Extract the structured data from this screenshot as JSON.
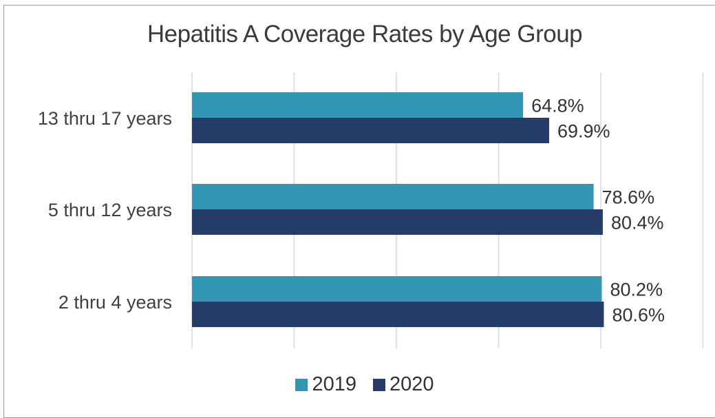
{
  "chart_data": {
    "type": "bar",
    "orientation": "horizontal",
    "title": "Hepatitis A Coverage Rates by Age Group",
    "categories": [
      "13 thru 17 years",
      "5 thru 12 years",
      "2 thru 4 years"
    ],
    "series": [
      {
        "name": "2019",
        "values": [
          64.8,
          78.6,
          80.2
        ],
        "labels": [
          "64.8%",
          "78.6%",
          "80.2%"
        ],
        "color": "#3296b4"
      },
      {
        "name": "2020",
        "values": [
          69.9,
          80.4,
          80.6
        ],
        "labels": [
          "69.9%",
          "80.4%",
          "80.6%"
        ],
        "color": "#263d6a"
      }
    ],
    "xlim": [
      0,
      100
    ],
    "grid": true,
    "legend_position": "bottom"
  }
}
